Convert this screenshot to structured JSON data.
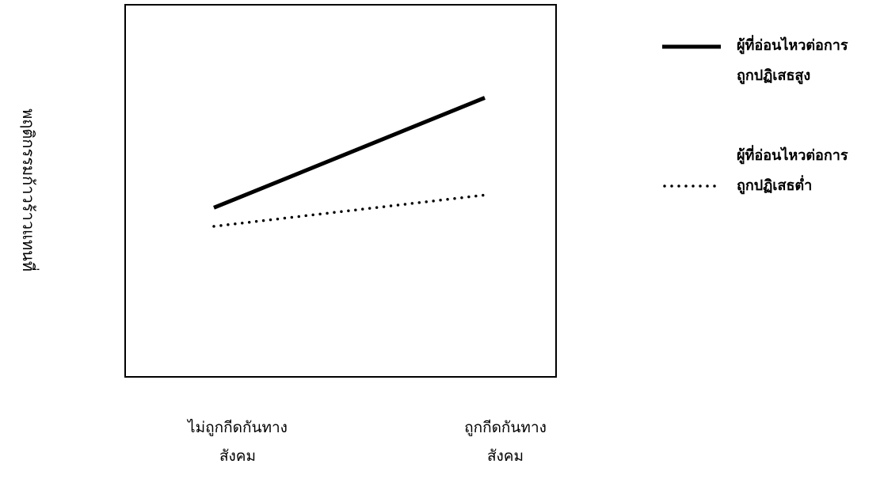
{
  "chart_data": {
    "type": "line",
    "title": "",
    "ylabel": "พฤติกรรมก้าวร้าวแทนที่",
    "xlabel": "",
    "categories": [
      [
        "ไม่ถูกกีดกันทาง",
        "สังคม"
      ],
      [
        "ถูกกีดกันทาง",
        "สังคม"
      ]
    ],
    "series": [
      {
        "name_lines": [
          "ผู้ที่อ่อนไหวต่อการ",
          "ถูกปฏิเสธสูง"
        ],
        "style": "solid",
        "values": [
          1.0,
          2.3
        ]
      },
      {
        "name_lines": [
          "ผู้ที่อ่อนไหวต่อการ",
          "ถูกปฏิเสธต่ำ"
        ],
        "style": "dotted",
        "values": [
          0.78,
          1.15
        ]
      }
    ],
    "ylim": [
      -1.0,
      3.4
    ],
    "grid": false,
    "legend_position": "right"
  }
}
